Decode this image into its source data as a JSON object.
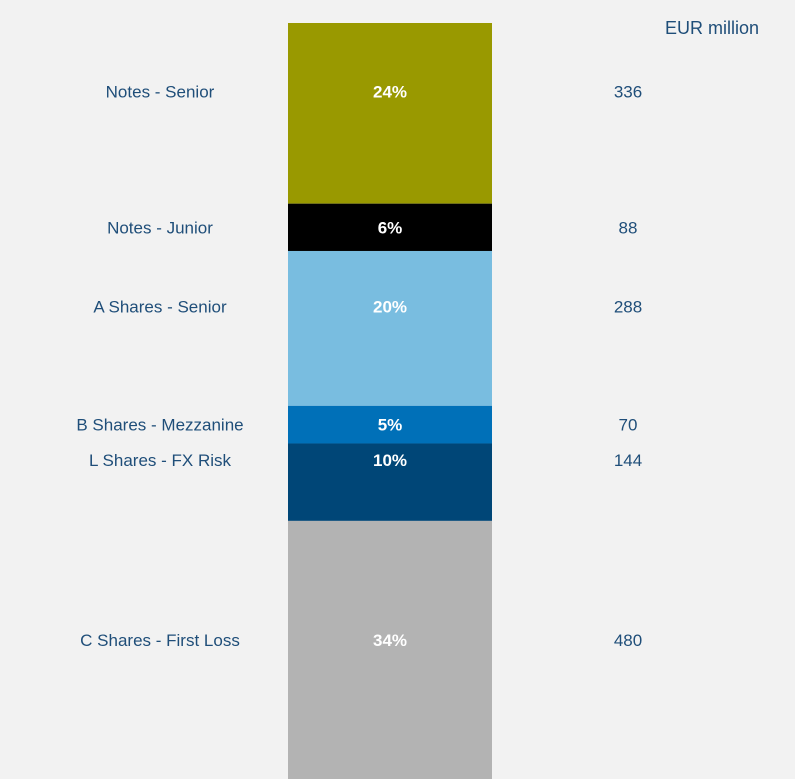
{
  "unit_label": "EUR million",
  "chart_data": {
    "type": "bar",
    "subtype": "stacked-100-single-column",
    "title": "",
    "xlabel": "",
    "ylabel": "",
    "unit": "EUR million",
    "categories": [
      "Notes - Senior",
      "Notes - Junior",
      "A Shares - Senior",
      "B Shares - Mezzanine",
      "L Shares - FX Risk",
      "C Shares - First Loss"
    ],
    "values": [
      336,
      88,
      288,
      70,
      144,
      480
    ],
    "percent_labels": [
      "24%",
      "6%",
      "20%",
      "5%",
      "10%",
      "34%"
    ],
    "value_labels": [
      "336",
      "88",
      "288",
      "70",
      "144",
      "480"
    ],
    "colors": [
      "#999900",
      "#000000",
      "#79bde0",
      "#0070b8",
      "#004677",
      "#b3b3b3"
    ],
    "label_color": "#1f4e79",
    "segment_text_color": "#ffffff"
  }
}
